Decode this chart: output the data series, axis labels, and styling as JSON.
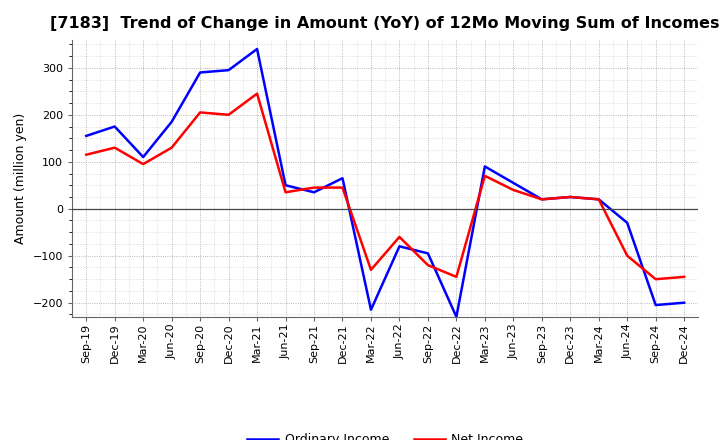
{
  "title": "[7183]  Trend of Change in Amount (YoY) of 12Mo Moving Sum of Incomes",
  "ylabel": "Amount (million yen)",
  "x_labels": [
    "Sep-19",
    "Dec-19",
    "Mar-20",
    "Jun-20",
    "Sep-20",
    "Dec-20",
    "Mar-21",
    "Jun-21",
    "Sep-21",
    "Dec-21",
    "Mar-22",
    "Jun-22",
    "Sep-22",
    "Dec-22",
    "Mar-23",
    "Jun-23",
    "Sep-23",
    "Dec-23",
    "Mar-24",
    "Jun-24",
    "Sep-24",
    "Dec-24"
  ],
  "ordinary_income": [
    155,
    175,
    110,
    185,
    290,
    295,
    340,
    50,
    35,
    65,
    -215,
    -80,
    -95,
    -230,
    90,
    55,
    20,
    25,
    20,
    -30,
    -205,
    -200
  ],
  "net_income": [
    115,
    130,
    95,
    130,
    205,
    200,
    245,
    35,
    45,
    45,
    -130,
    -60,
    -120,
    -145,
    70,
    40,
    20,
    25,
    20,
    -100,
    -150,
    -145
  ],
  "ordinary_color": "#0000ff",
  "net_color": "#ff0000",
  "background_color": "#ffffff",
  "plot_bg_color": "#ffffff",
  "grid_color": "#999999",
  "ylim": [
    -230,
    360
  ],
  "yticks": [
    -200,
    -100,
    0,
    100,
    200,
    300
  ],
  "legend_labels": [
    "Ordinary Income",
    "Net Income"
  ],
  "title_fontsize": 11.5,
  "axis_fontsize": 9,
  "tick_fontsize": 8,
  "line_width": 1.8
}
